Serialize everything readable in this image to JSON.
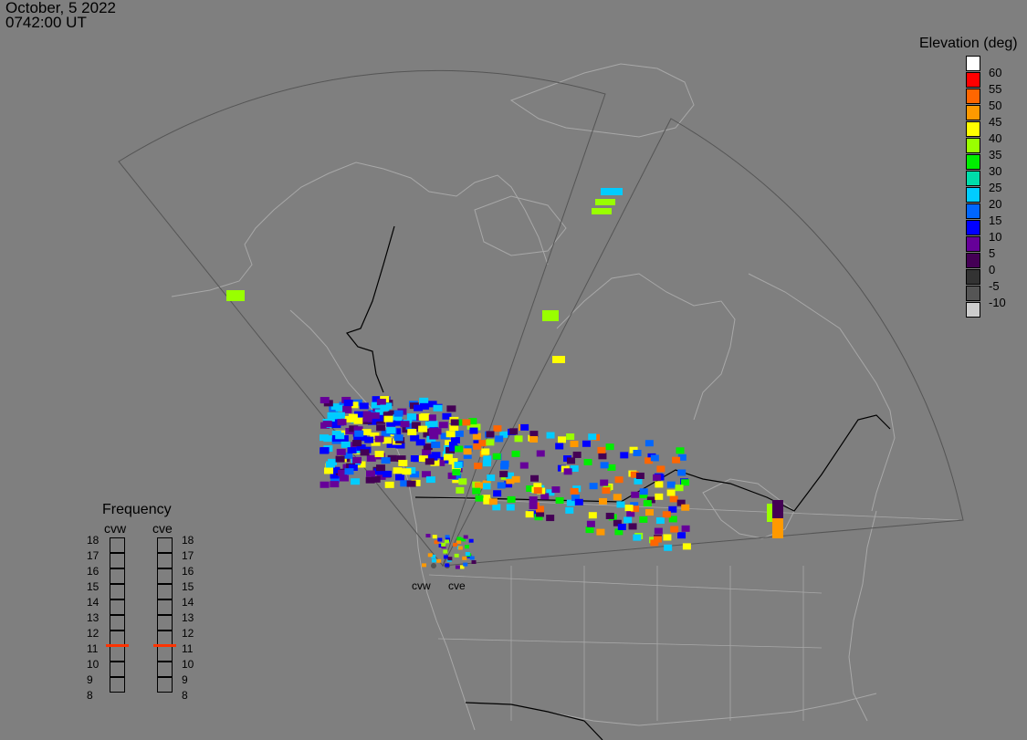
{
  "timestamp": {
    "date": "October, 5 2022",
    "time": "0742:00 UT"
  },
  "colorbar": {
    "title": "Elevation (deg)",
    "levels": [
      {
        "label": "60",
        "color": "#ffffff"
      },
      {
        "label": "55",
        "color": "#ff0000"
      },
      {
        "label": "50",
        "color": "#ff6600"
      },
      {
        "label": "45",
        "color": "#ff9900"
      },
      {
        "label": "40",
        "color": "#ffff00"
      },
      {
        "label": "35",
        "color": "#99ff00"
      },
      {
        "label": "30",
        "color": "#00ee00"
      },
      {
        "label": "25",
        "color": "#00ddaa"
      },
      {
        "label": "20",
        "color": "#00ccff"
      },
      {
        "label": "15",
        "color": "#0066ff"
      },
      {
        "label": "10",
        "color": "#0000ff"
      },
      {
        "label": "5",
        "color": "#660099"
      },
      {
        "label": "0",
        "color": "#440055"
      },
      {
        "label": "-5",
        "color": "#333333"
      },
      {
        "label": "-10",
        "color": "#555555"
      },
      {
        "label": "",
        "color": "#cccccc"
      }
    ]
  },
  "frequency": {
    "title": "Frequency",
    "columns": [
      "cvw",
      "cve"
    ],
    "labels": [
      "18",
      "17",
      "16",
      "15",
      "14",
      "13",
      "12",
      "11",
      "10",
      "9",
      "8"
    ],
    "current": {
      "cvw": 11,
      "cve": 11
    },
    "mark_color": "#ff3300"
  },
  "radars": [
    "cvw",
    "cve"
  ]
}
